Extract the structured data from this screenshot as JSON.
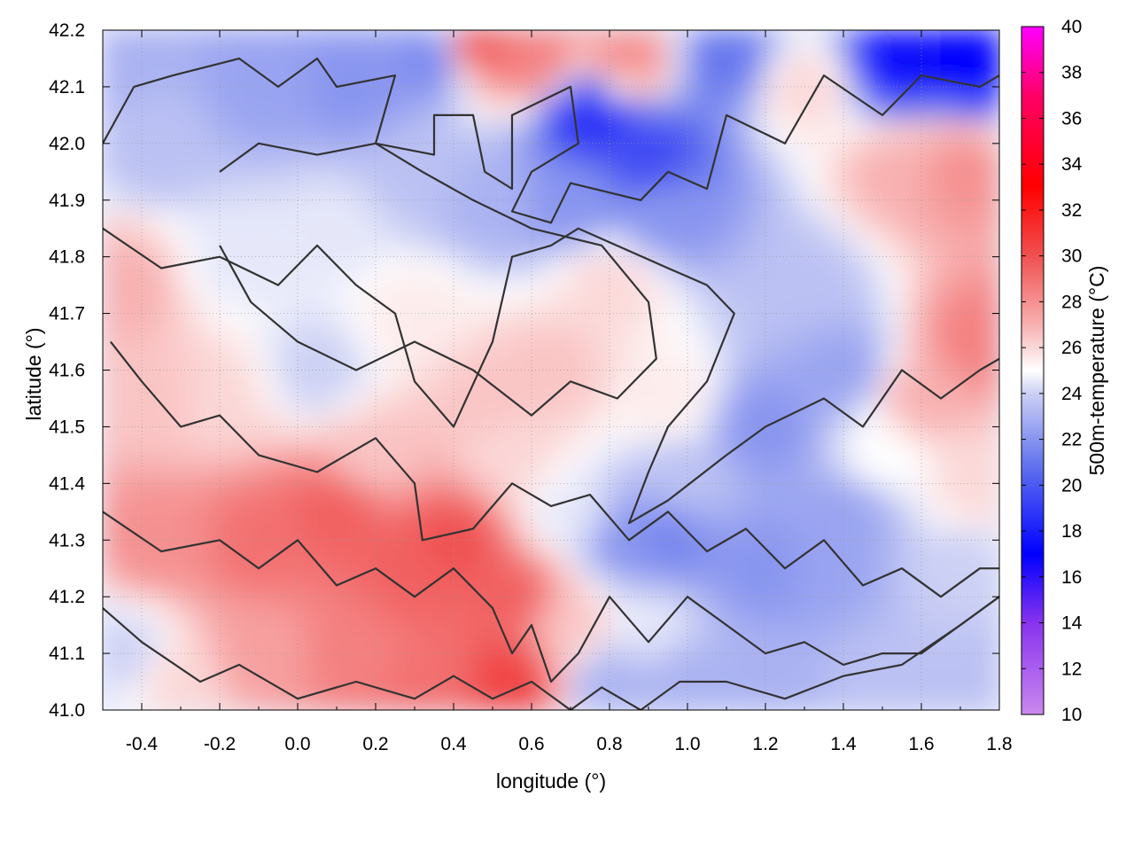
{
  "chart_data": {
    "type": "heatmap",
    "title": "",
    "xlabel": "longitude (°)",
    "ylabel": "latitude (°)",
    "colorbar_label": "500m-temperature (°C)",
    "xlim": [
      -0.5,
      1.8
    ],
    "ylim": [
      41.0,
      42.2
    ],
    "x_ticks": [
      -0.4,
      -0.2,
      0.0,
      0.2,
      0.4,
      0.6,
      0.8,
      1.0,
      1.2,
      1.4,
      1.6,
      1.8
    ],
    "x_tick_labels": [
      "-0.4",
      "-0.2",
      "0.0",
      "0.2",
      "0.4",
      "0.6",
      "0.8",
      "1.0",
      "1.2",
      "1.4",
      "1.6",
      "1.8"
    ],
    "y_ticks": [
      41.0,
      41.1,
      41.2,
      41.3,
      41.4,
      41.5,
      41.6,
      41.7,
      41.8,
      41.9,
      42.0,
      42.1,
      42.2
    ],
    "y_tick_labels": [
      "41.0",
      "41.1",
      "41.2",
      "41.3",
      "41.4",
      "41.5",
      "41.6",
      "41.7",
      "41.8",
      "41.9",
      "42.0",
      "42.1",
      "42.2"
    ],
    "colorbar_range": [
      10,
      40
    ],
    "colorbar_ticks": [
      10,
      12,
      14,
      16,
      18,
      20,
      22,
      24,
      26,
      28,
      30,
      32,
      34,
      36,
      38,
      40
    ],
    "colorbar_tick_labels": [
      "10",
      "12",
      "14",
      "16",
      "18",
      "20",
      "22",
      "24",
      "26",
      "28",
      "30",
      "32",
      "34",
      "36",
      "38",
      "40"
    ],
    "colormap": [
      {
        "value": 10,
        "color": "#cc88ee"
      },
      {
        "value": 14,
        "color": "#8833ee"
      },
      {
        "value": 17,
        "color": "#0000ff"
      },
      {
        "value": 21,
        "color": "#6677ee"
      },
      {
        "value": 24,
        "color": "#ccd0f4"
      },
      {
        "value": 25,
        "color": "#ffffff"
      },
      {
        "value": 27,
        "color": "#f8b0b0"
      },
      {
        "value": 30,
        "color": "#f05050"
      },
      {
        "value": 33,
        "color": "#ff0000"
      },
      {
        "value": 37,
        "color": "#ff0066"
      },
      {
        "value": 40,
        "color": "#ff00ff"
      }
    ],
    "grid": true,
    "field_samples": [
      {
        "lon": -0.45,
        "lat": 42.15,
        "temp": 23.0
      },
      {
        "lon": -0.35,
        "lat": 42.0,
        "temp": 23.5
      },
      {
        "lon": -0.1,
        "lat": 42.1,
        "temp": 22.5
      },
      {
        "lon": 0.15,
        "lat": 42.1,
        "temp": 22.0
      },
      {
        "lon": 0.35,
        "lat": 42.15,
        "temp": 21.5
      },
      {
        "lon": 0.45,
        "lat": 42.18,
        "temp": 30.0
      },
      {
        "lon": 0.6,
        "lat": 42.15,
        "temp": 28.5
      },
      {
        "lon": 0.75,
        "lat": 42.05,
        "temp": 18.5
      },
      {
        "lon": 0.9,
        "lat": 41.98,
        "temp": 19.5
      },
      {
        "lon": 0.85,
        "lat": 42.15,
        "temp": 28.0
      },
      {
        "lon": 1.1,
        "lat": 42.15,
        "temp": 21.0
      },
      {
        "lon": 1.3,
        "lat": 42.1,
        "temp": 26.0
      },
      {
        "lon": 1.55,
        "lat": 42.15,
        "temp": 17.5
      },
      {
        "lon": 1.75,
        "lat": 42.15,
        "temp": 17.0
      },
      {
        "lon": 1.7,
        "lat": 41.95,
        "temp": 28.0
      },
      {
        "lon": 1.55,
        "lat": 41.95,
        "temp": 27.0
      },
      {
        "lon": 1.75,
        "lat": 41.65,
        "temp": 28.5
      },
      {
        "lon": 1.6,
        "lat": 41.55,
        "temp": 27.0
      },
      {
        "lon": 1.4,
        "lat": 41.6,
        "temp": 22.5
      },
      {
        "lon": 1.3,
        "lat": 41.75,
        "temp": 23.5
      },
      {
        "lon": 1.2,
        "lat": 41.5,
        "temp": 22.0
      },
      {
        "lon": 0.95,
        "lat": 41.88,
        "temp": 22.0
      },
      {
        "lon": 0.7,
        "lat": 41.9,
        "temp": 22.0
      },
      {
        "lon": 0.5,
        "lat": 41.9,
        "temp": 23.0
      },
      {
        "lon": 0.3,
        "lat": 41.95,
        "temp": 23.5
      },
      {
        "lon": 0.1,
        "lat": 41.85,
        "temp": 24.5
      },
      {
        "lon": -0.15,
        "lat": 41.8,
        "temp": 24.5
      },
      {
        "lon": -0.45,
        "lat": 41.75,
        "temp": 27.0
      },
      {
        "lon": -0.35,
        "lat": 41.55,
        "temp": 26.5
      },
      {
        "lon": -0.2,
        "lat": 41.55,
        "temp": 26.0
      },
      {
        "lon": 0.05,
        "lat": 41.6,
        "temp": 24.0
      },
      {
        "lon": 0.2,
        "lat": 41.45,
        "temp": 26.5
      },
      {
        "lon": 0.3,
        "lat": 41.7,
        "temp": 25.5
      },
      {
        "lon": 0.5,
        "lat": 41.55,
        "temp": 26.5
      },
      {
        "lon": 0.65,
        "lat": 41.6,
        "temp": 26.5
      },
      {
        "lon": 0.8,
        "lat": 41.75,
        "temp": 26.0
      },
      {
        "lon": 0.95,
        "lat": 41.55,
        "temp": 25.5
      },
      {
        "lon": 1.0,
        "lat": 41.4,
        "temp": 23.5
      },
      {
        "lon": 0.95,
        "lat": 41.3,
        "temp": 21.5
      },
      {
        "lon": 0.85,
        "lat": 41.3,
        "temp": 22.0
      },
      {
        "lon": 0.7,
        "lat": 41.35,
        "temp": 24.5
      },
      {
        "lon": 0.55,
        "lat": 41.45,
        "temp": 26.0
      },
      {
        "lon": 0.4,
        "lat": 41.3,
        "temp": 30.0
      },
      {
        "lon": 0.3,
        "lat": 41.25,
        "temp": 29.5
      },
      {
        "lon": 0.1,
        "lat": 41.35,
        "temp": 29.5
      },
      {
        "lon": -0.1,
        "lat": 41.3,
        "temp": 29.0
      },
      {
        "lon": -0.35,
        "lat": 41.3,
        "temp": 28.0
      },
      {
        "lon": -0.45,
        "lat": 41.1,
        "temp": 24.0
      },
      {
        "lon": -0.3,
        "lat": 41.05,
        "temp": 26.0
      },
      {
        "lon": -0.1,
        "lat": 41.1,
        "temp": 27.5
      },
      {
        "lon": 0.15,
        "lat": 41.1,
        "temp": 28.5
      },
      {
        "lon": 0.35,
        "lat": 41.05,
        "temp": 29.0
      },
      {
        "lon": 0.55,
        "lat": 41.05,
        "temp": 30.5
      },
      {
        "lon": 0.55,
        "lat": 41.2,
        "temp": 29.5
      },
      {
        "lon": 0.7,
        "lat": 41.15,
        "temp": 26.5
      },
      {
        "lon": 0.8,
        "lat": 41.05,
        "temp": 23.0
      },
      {
        "lon": 0.9,
        "lat": 41.15,
        "temp": 24.5
      },
      {
        "lon": 1.0,
        "lat": 41.05,
        "temp": 23.0
      },
      {
        "lon": 1.2,
        "lat": 41.05,
        "temp": 23.0
      },
      {
        "lon": 1.2,
        "lat": 41.25,
        "temp": 22.0
      },
      {
        "lon": 1.35,
        "lat": 41.25,
        "temp": 22.5
      },
      {
        "lon": 1.5,
        "lat": 41.05,
        "temp": 23.5
      },
      {
        "lon": 1.75,
        "lat": 41.05,
        "temp": 23.5
      },
      {
        "lon": 1.7,
        "lat": 41.25,
        "temp": 24.0
      },
      {
        "lon": 1.75,
        "lat": 41.4,
        "temp": 26.0
      },
      {
        "lon": 1.5,
        "lat": 41.45,
        "temp": 25.0
      },
      {
        "lon": 1.4,
        "lat": 41.35,
        "temp": 22.5
      }
    ],
    "contours": [
      {
        "lon": [
          -0.5,
          -0.42,
          -0.32,
          -0.15,
          -0.05,
          0.05,
          0.1,
          0.25,
          0.2,
          0.35,
          0.35,
          0.45,
          0.48,
          0.55,
          0.55,
          0.7,
          0.72,
          0.6,
          0.55,
          0.65,
          0.7,
          0.88,
          0.95,
          1.05,
          1.1,
          1.25,
          1.35,
          1.5,
          1.6,
          1.75,
          1.8
        ],
        "lat": [
          42.0,
          42.1,
          42.12,
          42.15,
          42.1,
          42.15,
          42.1,
          42.12,
          42.0,
          41.98,
          42.05,
          42.05,
          41.95,
          41.92,
          42.05,
          42.1,
          42.0,
          41.95,
          41.88,
          41.86,
          41.93,
          41.9,
          41.95,
          41.92,
          42.05,
          42.0,
          42.12,
          42.05,
          42.12,
          42.1,
          42.12
        ]
      },
      {
        "lon": [
          -0.5,
          -0.35,
          -0.2,
          -0.05,
          0.05,
          0.15,
          0.25,
          0.3,
          0.4,
          0.5,
          0.55,
          0.65,
          0.72,
          0.95,
          1.05,
          1.12,
          1.05,
          0.95,
          0.9,
          0.85,
          0.95,
          1.1,
          1.2,
          1.35,
          1.45,
          1.55,
          1.65,
          1.75,
          1.8
        ],
        "lat": [
          41.85,
          41.78,
          41.8,
          41.75,
          41.82,
          41.75,
          41.7,
          41.58,
          41.5,
          41.65,
          41.8,
          41.82,
          41.85,
          41.78,
          41.75,
          41.7,
          41.58,
          41.5,
          41.42,
          41.33,
          41.37,
          41.45,
          41.5,
          41.55,
          41.5,
          41.6,
          41.55,
          41.6,
          41.62
        ]
      },
      {
        "lon": [
          -0.48,
          -0.4,
          -0.3,
          -0.2,
          -0.1,
          0.05,
          0.2,
          0.3,
          0.32,
          0.45,
          0.55,
          0.65,
          0.75,
          0.85,
          0.95,
          1.05,
          1.15,
          1.25,
          1.35,
          1.45,
          1.55,
          1.65,
          1.75,
          1.8
        ],
        "lat": [
          41.65,
          41.58,
          41.5,
          41.52,
          41.45,
          41.42,
          41.48,
          41.4,
          41.3,
          41.32,
          41.4,
          41.36,
          41.38,
          41.3,
          41.35,
          41.28,
          41.32,
          41.25,
          41.3,
          41.22,
          41.25,
          41.2,
          41.25,
          41.25
        ]
      },
      {
        "lon": [
          -0.5,
          -0.35,
          -0.2,
          -0.1,
          0.0,
          0.1,
          0.2,
          0.3,
          0.4,
          0.5,
          0.55,
          0.6,
          0.65,
          0.72,
          0.8,
          0.9,
          1.0,
          1.1,
          1.2,
          1.3,
          1.4,
          1.5,
          1.6,
          1.7,
          1.8
        ],
        "lat": [
          41.35,
          41.28,
          41.3,
          41.25,
          41.3,
          41.22,
          41.25,
          41.2,
          41.25,
          41.18,
          41.1,
          41.15,
          41.05,
          41.1,
          41.2,
          41.12,
          41.2,
          41.15,
          41.1,
          41.12,
          41.08,
          41.1,
          41.1,
          41.15,
          41.2
        ]
      },
      {
        "lon": [
          -0.5,
          -0.4,
          -0.25,
          -0.15,
          0.0,
          0.15,
          0.3,
          0.4,
          0.5,
          0.6,
          0.7,
          0.78,
          0.88,
          0.98,
          1.1,
          1.25,
          1.4,
          1.55,
          1.7,
          1.8
        ],
        "lat": [
          41.18,
          41.12,
          41.05,
          41.08,
          41.02,
          41.05,
          41.02,
          41.06,
          41.02,
          41.05,
          41.0,
          41.04,
          41.0,
          41.05,
          41.05,
          41.02,
          41.06,
          41.08,
          41.15,
          41.2
        ]
      },
      {
        "lon": [
          -0.2,
          -0.1,
          0.05,
          0.2,
          0.32,
          0.45,
          0.6,
          0.78,
          0.9,
          0.92,
          0.82,
          0.7,
          0.6,
          0.45,
          0.3,
          0.15,
          0.0,
          -0.12,
          -0.2
        ],
        "lat": [
          41.95,
          42.0,
          41.98,
          42.0,
          41.95,
          41.9,
          41.85,
          41.82,
          41.72,
          41.62,
          41.55,
          41.58,
          41.52,
          41.6,
          41.65,
          41.6,
          41.65,
          41.72,
          41.82
        ]
      }
    ]
  }
}
